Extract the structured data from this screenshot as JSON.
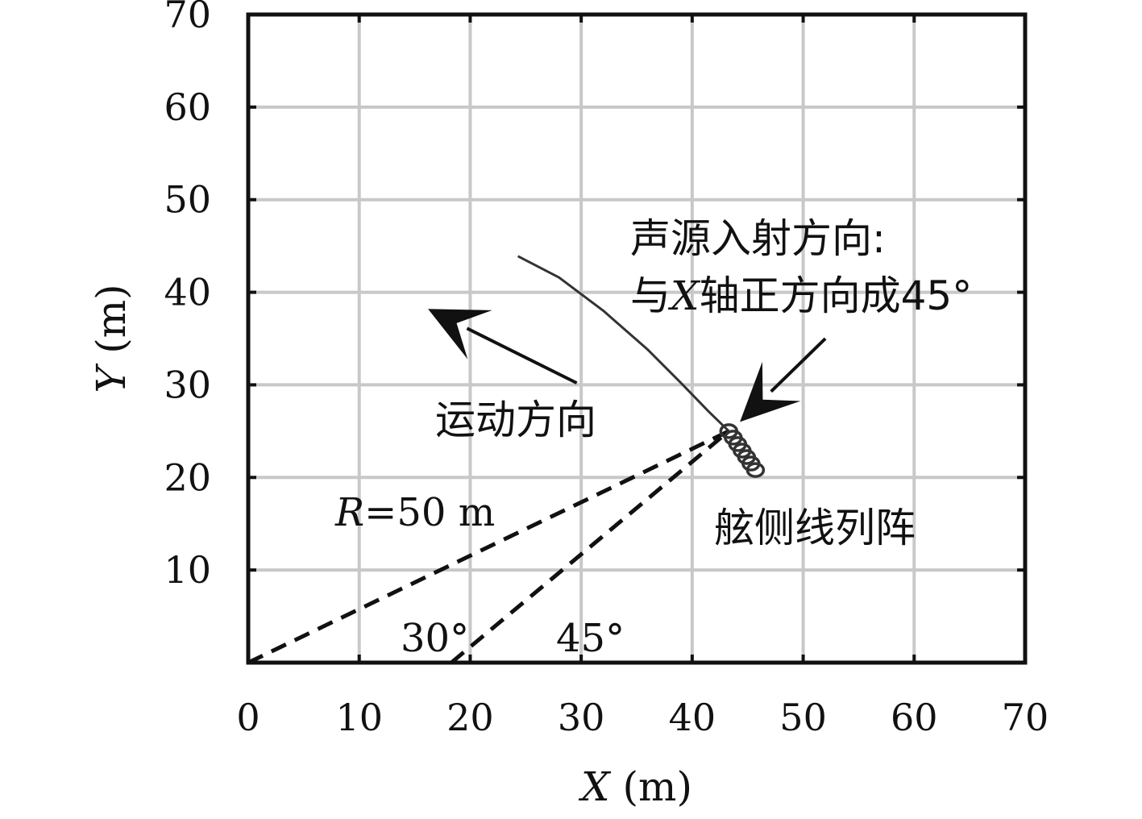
{
  "chart_data": {
    "type": "line",
    "xlabel": "X (m)",
    "ylabel": "Y (m)",
    "xlim": [
      0,
      70
    ],
    "ylim": [
      0,
      70
    ],
    "x_ticks": [
      "0",
      "10",
      "20",
      "30",
      "40",
      "50",
      "60",
      "70"
    ],
    "y_ticks": [
      "10",
      "20",
      "30",
      "40",
      "50",
      "60",
      "70"
    ],
    "grid": true,
    "series": [
      {
        "style": "solid-thin",
        "x": [
          24.3,
          28.0,
          32.0,
          36.0,
          39.0,
          41.5,
          43.3
        ],
        "y": [
          43.9,
          41.6,
          38.0,
          33.8,
          30.2,
          27.1,
          25.0
        ]
      },
      {
        "style": "dashed",
        "x": [
          0,
          43.3
        ],
        "y": [
          0,
          25.0
        ]
      },
      {
        "style": "dashed",
        "x": [
          18.3,
          43.3
        ],
        "y": [
          0,
          25.0
        ]
      }
    ],
    "array_elements": {
      "x": [
        43.3,
        43.7,
        44.1,
        44.5,
        44.9,
        45.3,
        45.7
      ],
      "y": [
        25.0,
        24.3,
        23.6,
        22.9,
        22.2,
        21.5,
        20.8
      ]
    },
    "arrows": [
      {
        "from": [
          29.6,
          30.2
        ],
        "to": [
          16.2,
          38.2
        ]
      },
      {
        "from": [
          52.0,
          35.0
        ],
        "to": [
          44.3,
          26.0
        ]
      }
    ],
    "annotations": {
      "incidence_line1": "声源入射方向:",
      "incidence_line2_prefix": "与",
      "incidence_line2_var": "X",
      "incidence_line2_suffix": "轴正方向成45°",
      "motion": "运动方向",
      "array": "舷侧线列阵",
      "radius_var": "R",
      "radius_rest": "=50 m",
      "angle1": "30°",
      "angle2": "45°"
    },
    "xlabel_var": "X",
    "xlabel_unit": " (m)",
    "ylabel_var": "Y",
    "ylabel_unit": " (m)"
  }
}
